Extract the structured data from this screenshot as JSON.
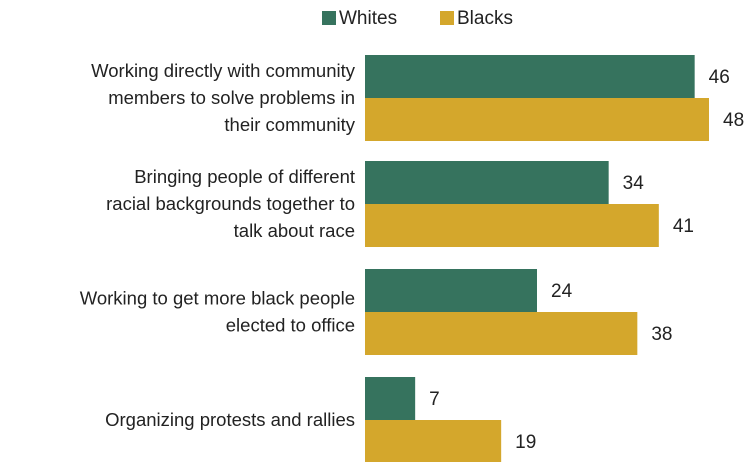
{
  "chart_data": {
    "type": "bar",
    "orientation": "horizontal",
    "categories": [
      [
        "Working directly with community",
        "members to solve problems in",
        "their community"
      ],
      [
        "Bringing people of different",
        "racial backgrounds together to",
        "talk about race"
      ],
      [
        "Working to get more black people",
        "elected to office"
      ],
      [
        "Organizing protests and rallies"
      ]
    ],
    "series": [
      {
        "name": "Whites",
        "values": [
          46,
          34,
          24,
          7
        ],
        "color": "#36735e"
      },
      {
        "name": "Blacks",
        "values": [
          48,
          41,
          38,
          19
        ],
        "color": "#d4a72c"
      }
    ],
    "legend": {
      "position": "top",
      "items": [
        "Whites",
        "Blacks"
      ]
    },
    "xlim": [
      0,
      50
    ],
    "grid": false
  }
}
